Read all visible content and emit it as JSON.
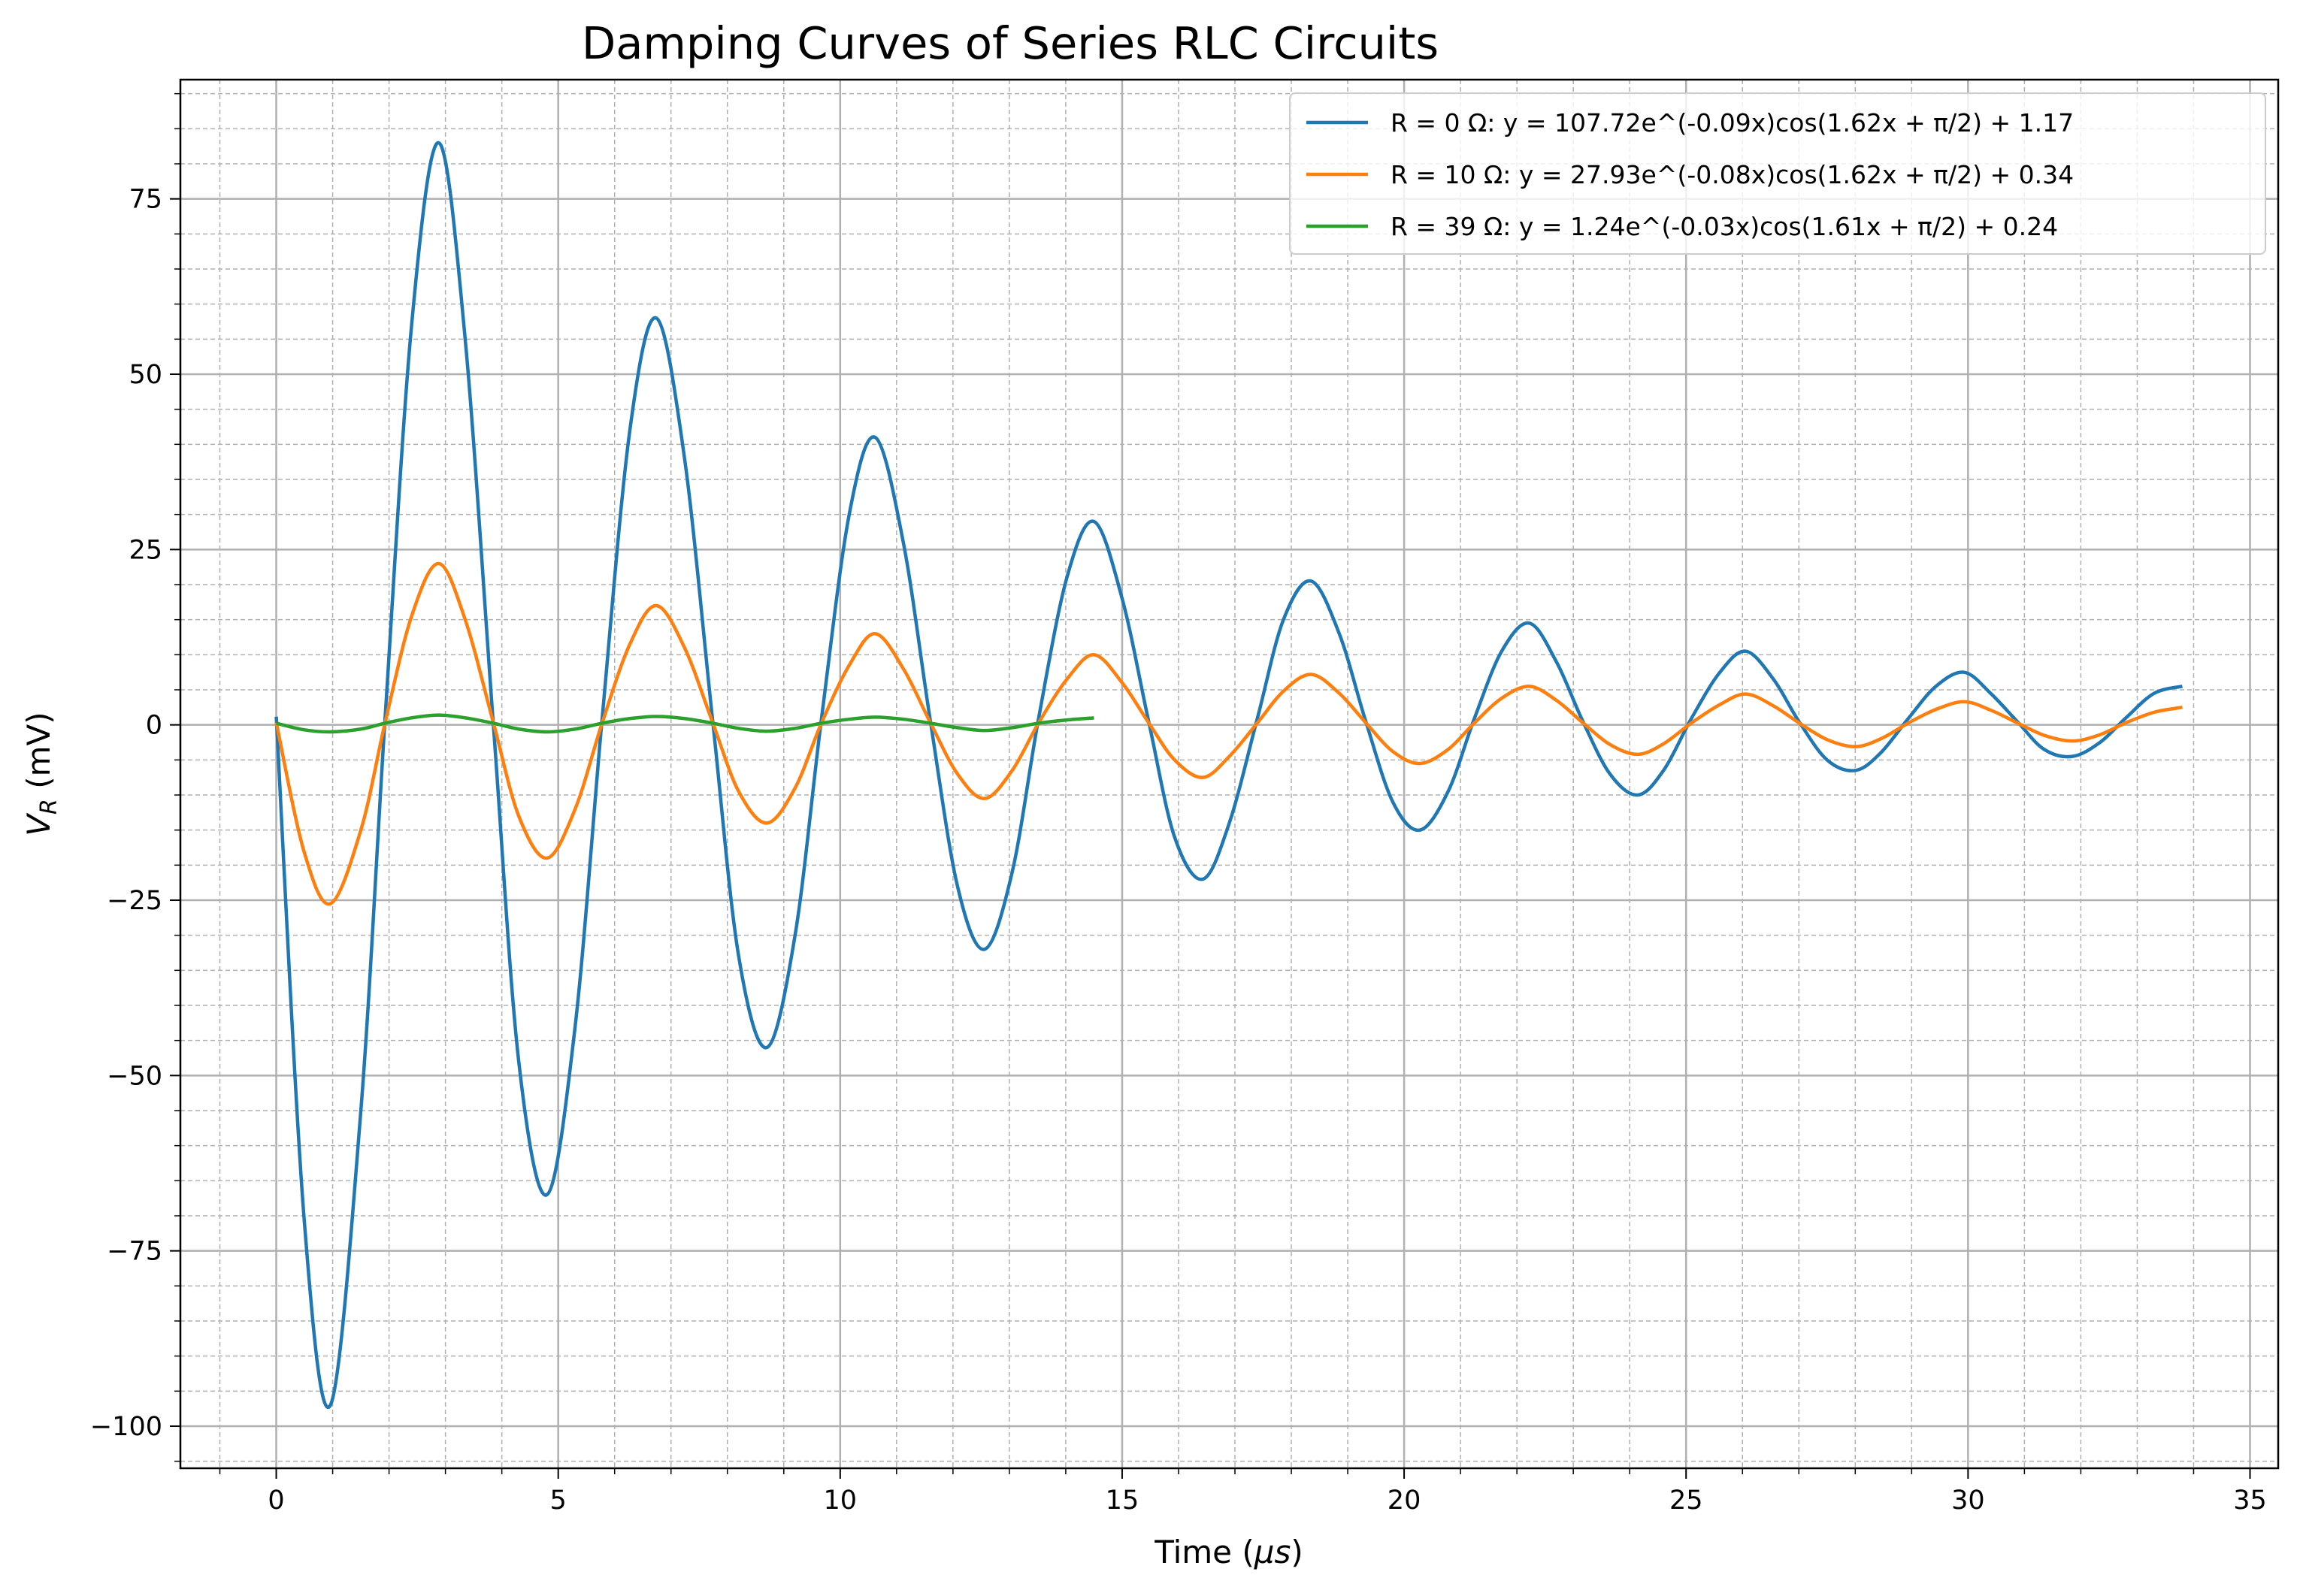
{
  "chart_data": {
    "type": "line",
    "title": "Damping Curves of Series RLC Circuits",
    "xlabel": "Time (",
    "xlabel_unit": "μs",
    "xlabel_close": ")",
    "ylabel": "V",
    "ylabel_sub": "R",
    "ylabel_unit": " (mV)",
    "xlim": [
      -1.7,
      35.5
    ],
    "ylim": [
      -106,
      92
    ],
    "xticks": [
      0,
      5,
      10,
      15,
      20,
      25,
      30,
      35
    ],
    "xtick_labels": [
      "0",
      "5",
      "10",
      "15",
      "20",
      "25",
      "30",
      "35"
    ],
    "yticks": [
      -100,
      -75,
      -50,
      -25,
      0,
      25,
      50,
      75
    ],
    "ytick_labels": [
      "−100",
      "−75",
      "−50",
      "−25",
      "0",
      "25",
      "50",
      "75"
    ],
    "grid": true,
    "legend_position": "top-right",
    "series": [
      {
        "name": "R = 0 Ω: y = 107.72e^(-0.09x)cos(1.62x + π/2) + 1.17",
        "color": "#1f77b4",
        "x": [
          0.0,
          0.49,
          0.96,
          1.5,
          1.93,
          2.4,
          2.88,
          3.35,
          3.85,
          4.3,
          4.8,
          5.3,
          5.78,
          6.27,
          6.74,
          7.24,
          7.74,
          8.2,
          8.7,
          9.2,
          9.67,
          10.16,
          10.62,
          11.12,
          11.6,
          12.08,
          12.56,
          13.05,
          13.52,
          14.02,
          14.5,
          15.0,
          15.47,
          15.93,
          16.43,
          16.9,
          17.4,
          17.86,
          18.35,
          18.85,
          19.32,
          19.8,
          20.28,
          20.78,
          21.25,
          21.73,
          22.22,
          22.7,
          23.17,
          23.65,
          24.14,
          24.6,
          25.1,
          25.6,
          26.06,
          26.55,
          27.0,
          27.5,
          28.0,
          28.45,
          28.95,
          29.43,
          29.93,
          30.4,
          30.87,
          31.35,
          31.85,
          32.34,
          32.8,
          33.3,
          33.8
        ],
        "y": [
          1.17,
          -70.0,
          -97.0,
          -55.0,
          1.0,
          57.0,
          83.0,
          55.0,
          0.0,
          -48.0,
          -67.0,
          -43.0,
          1.0,
          42.0,
          58.0,
          38.0,
          0.5,
          -33.0,
          -46.0,
          -30.0,
          1.0,
          30.0,
          41.0,
          26.0,
          0.5,
          -23.0,
          -32.0,
          -21.0,
          1.0,
          21.0,
          29.0,
          18.0,
          0.5,
          -16.0,
          -22.0,
          -14.0,
          1.0,
          15.0,
          20.5,
          13.0,
          0.5,
          -11.0,
          -15.0,
          -9.5,
          1.0,
          10.5,
          14.5,
          9.0,
          0.5,
          -7.0,
          -10.0,
          -6.5,
          1.0,
          7.5,
          10.5,
          6.5,
          0.5,
          -5.0,
          -6.5,
          -4.0,
          1.0,
          5.5,
          7.5,
          4.5,
          0.5,
          -3.5,
          -4.5,
          -2.5,
          1.0,
          4.5,
          5.5
        ]
      },
      {
        "name": "R = 10 Ω: y = 27.93e^(-0.08x)cos(1.62x + π/2) + 0.34",
        "color": "#ff7f0e",
        "x": [
          0.0,
          0.49,
          0.96,
          1.5,
          1.93,
          2.4,
          2.88,
          3.35,
          3.85,
          4.3,
          4.8,
          5.3,
          5.78,
          6.27,
          6.74,
          7.24,
          7.74,
          8.2,
          8.7,
          9.2,
          9.67,
          10.16,
          10.62,
          11.12,
          11.6,
          12.08,
          12.56,
          13.05,
          13.52,
          14.02,
          14.5,
          15.0,
          15.47,
          15.93,
          16.43,
          16.9,
          17.4,
          17.86,
          18.35,
          18.85,
          19.32,
          19.8,
          20.28,
          20.78,
          21.25,
          21.73,
          22.22,
          22.7,
          23.17,
          23.65,
          24.14,
          24.6,
          25.1,
          25.6,
          26.06,
          26.55,
          27.0,
          27.5,
          28.0,
          28.45,
          28.95,
          29.43,
          29.93,
          30.4,
          30.87,
          31.35,
          31.85,
          32.34,
          32.8,
          33.3,
          33.8
        ],
        "y": [
          0.34,
          -18.0,
          -25.5,
          -15.0,
          0.3,
          15.5,
          23.0,
          15.0,
          0.3,
          -13.0,
          -19.0,
          -12.0,
          0.3,
          11.5,
          17.0,
          11.0,
          0.3,
          -9.5,
          -14.0,
          -9.0,
          0.3,
          8.5,
          13.0,
          8.0,
          0.3,
          -7.0,
          -10.5,
          -6.5,
          0.3,
          6.5,
          10.0,
          6.0,
          0.3,
          -5.0,
          -7.5,
          -4.5,
          0.3,
          4.8,
          7.2,
          4.5,
          0.3,
          -3.8,
          -5.5,
          -3.5,
          0.3,
          3.8,
          5.5,
          3.5,
          0.3,
          -2.8,
          -4.2,
          -2.7,
          0.3,
          2.9,
          4.4,
          2.7,
          0.3,
          -2.1,
          -3.1,
          -2.0,
          0.3,
          2.2,
          3.3,
          2.1,
          0.3,
          -1.5,
          -2.3,
          -1.4,
          0.3,
          1.8,
          2.5
        ]
      },
      {
        "name": "R = 39 Ω: y = 1.24e^(-0.03x)cos(1.61x + π/2) + 0.24",
        "color": "#2ca02c",
        "x": [
          0.0,
          0.49,
          0.96,
          1.5,
          1.93,
          2.4,
          2.88,
          3.35,
          3.85,
          4.3,
          4.8,
          5.3,
          5.78,
          6.27,
          6.74,
          7.24,
          7.74,
          8.2,
          8.7,
          9.2,
          9.67,
          10.16,
          10.62,
          11.12,
          11.6,
          12.08,
          12.56,
          13.05,
          13.52,
          14.02,
          14.5
        ],
        "y": [
          0.24,
          -0.7,
          -1.0,
          -0.6,
          0.24,
          1.0,
          1.4,
          1.0,
          0.24,
          -0.6,
          -1.0,
          -0.6,
          0.24,
          0.9,
          1.2,
          0.9,
          0.24,
          -0.5,
          -0.9,
          -0.5,
          0.24,
          0.8,
          1.1,
          0.8,
          0.24,
          -0.4,
          -0.8,
          -0.4,
          0.24,
          0.7,
          1.0
        ]
      }
    ]
  }
}
